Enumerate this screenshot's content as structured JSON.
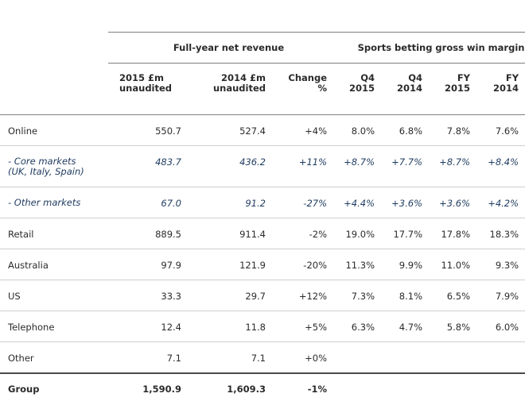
{
  "headers": {
    "group_revenue": "Full-year net revenue",
    "group_sports": "Sports betting gross win margin",
    "rev15": "2015 £m\nunaudited",
    "rev14": "2014 £m\nunaudited",
    "change": "Change\n%",
    "q415": "Q4\n2015",
    "q414": "Q4\n2014",
    "fy15": "FY\n2015",
    "fy14": "FY\n2014"
  },
  "rows": [
    {
      "label": "Online",
      "rev15": "550.7",
      "rev14": "527.4",
      "change": "+4%",
      "q415": "8.0%",
      "q414": "6.8%",
      "fy15": "7.8%",
      "fy14": "7.6%"
    },
    {
      "label": "- Core markets\n(UK, Italy, Spain)",
      "rev15": "483.7",
      "rev14": "436.2",
      "change": "+11%",
      "q415": "+8.7%",
      "q414": "+7.7%",
      "fy15": "+8.7%",
      "fy14": "+8.4%"
    },
    {
      "label": "- Other markets",
      "rev15": "67.0",
      "rev14": "91.2",
      "change": "-27%",
      "q415": "+4.4%",
      "q414": "+3.6%",
      "fy15": "+3.6%",
      "fy14": "+4.2%"
    },
    {
      "label": "Retail",
      "rev15": "889.5",
      "rev14": "911.4",
      "change": "-2%",
      "q415": "19.0%",
      "q414": "17.7%",
      "fy15": "17.8%",
      "fy14": "18.3%"
    },
    {
      "label": "Australia",
      "rev15": "97.9",
      "rev14": "121.9",
      "change": "-20%",
      "q415": "11.3%",
      "q414": "9.9%",
      "fy15": "11.0%",
      "fy14": "9.3%"
    },
    {
      "label": "US",
      "rev15": "33.3",
      "rev14": "29.7",
      "change": "+12%",
      "q415": "7.3%",
      "q414": "8.1%",
      "fy15": "6.5%",
      "fy14": "7.9%"
    },
    {
      "label": "Telephone",
      "rev15": "12.4",
      "rev14": "11.8",
      "change": "+5%",
      "q415": "6.3%",
      "q414": "4.7%",
      "fy15": "5.8%",
      "fy14": "6.0%"
    },
    {
      "label": "Other",
      "rev15": "7.1",
      "rev14": "7.1",
      "change": "+0%",
      "q415": "",
      "q414": "",
      "fy15": "",
      "fy14": ""
    },
    {
      "label": "Group",
      "rev15": "1,590.9",
      "rev14": "1,609.3",
      "change": "-1%",
      "q415": "",
      "q414": "",
      "fy15": "",
      "fy14": ""
    }
  ]
}
